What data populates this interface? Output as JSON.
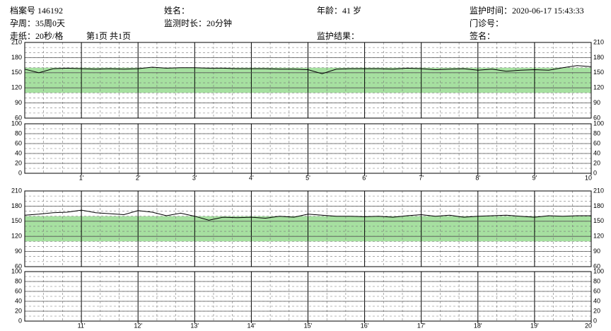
{
  "header": {
    "fields": [
      "档案号 146192",
      "姓名：",
      "年龄：41 岁",
      "监护时间：2020-06-17 15:43:33",
      "孕周：35周0天",
      "监测时长：20分钟",
      "门诊号：",
      "走纸：20秒/格",
      "第1页 共1页",
      "监护结果：",
      "签名："
    ]
  },
  "chart_data": [
    {
      "type": "line",
      "xlim": [
        0,
        10
      ],
      "ylim": [
        60,
        210
      ],
      "yticks": [
        60,
        90,
        120,
        150,
        180,
        210
      ],
      "grid": true,
      "normal_range": [
        110,
        160
      ],
      "normal_color": "#a6e0a0",
      "x": [
        0,
        0.25,
        0.5,
        0.75,
        1,
        1.25,
        1.5,
        1.75,
        2,
        2.25,
        2.5,
        2.75,
        3,
        3.25,
        3.5,
        3.75,
        4,
        4.25,
        4.5,
        4.75,
        5,
        5.25,
        5.5,
        5.75,
        6,
        6.25,
        6.5,
        6.75,
        7,
        7.25,
        7.5,
        7.75,
        8,
        8.25,
        8.5,
        8.75,
        9,
        9.25,
        9.5,
        9.75,
        10
      ],
      "series": [
        {
          "color": "#000000",
          "values": [
            157,
            150,
            158,
            159,
            158,
            157,
            158,
            157,
            158,
            161,
            159,
            160,
            160,
            159,
            159,
            158,
            158,
            158,
            157,
            157,
            156,
            148,
            157,
            158,
            158,
            158,
            157,
            159,
            158,
            156,
            157,
            158,
            155,
            157,
            153,
            155,
            156,
            155,
            160,
            164,
            162
          ]
        }
      ]
    },
    {
      "type": "line",
      "xlim": [
        0,
        10
      ],
      "ylim": [
        0,
        100
      ],
      "yticks": [
        0,
        20,
        40,
        60,
        80,
        100
      ],
      "grid": true,
      "xticks": [
        {
          "value": 1,
          "label": "1'"
        },
        {
          "value": 2,
          "label": "2'"
        },
        {
          "value": 3,
          "label": "3'"
        },
        {
          "value": 4,
          "label": "4'"
        },
        {
          "value": 5,
          "label": "5'"
        },
        {
          "value": 6,
          "label": "6'"
        },
        {
          "value": 7,
          "label": "7'"
        },
        {
          "value": 8,
          "label": "8'"
        },
        {
          "value": 9,
          "label": "9'"
        },
        10
      ]
    },
    {
      "type": "line",
      "xlim": [
        10,
        20
      ],
      "ylim": [
        60,
        210
      ],
      "yticks": [
        60,
        90,
        120,
        150,
        180,
        210
      ],
      "grid": true,
      "normal_range": [
        110,
        160
      ],
      "normal_color": "#a6e0a0",
      "x": [
        10,
        10.25,
        10.5,
        10.75,
        11,
        11.25,
        11.5,
        11.75,
        12,
        12.25,
        12.5,
        12.75,
        13,
        13.25,
        13.5,
        13.75,
        14,
        14.25,
        14.5,
        14.75,
        15,
        15.25,
        15.5,
        15.75,
        16,
        16.25,
        16.5,
        16.75,
        17,
        17.25,
        17.5,
        17.75,
        18,
        18.25,
        18.5,
        18.75,
        19,
        19.25,
        19.5,
        19.75,
        20
      ],
      "series": [
        {
          "color": "#000000",
          "values": [
            162,
            164,
            167,
            168,
            172,
            167,
            165,
            163,
            171,
            168,
            161,
            166,
            160,
            152,
            158,
            157,
            158,
            156,
            160,
            158,
            164,
            162,
            160,
            160,
            159,
            160,
            158,
            161,
            163,
            160,
            162,
            158,
            160,
            161,
            162,
            160,
            158,
            161,
            160,
            161,
            161
          ]
        }
      ]
    },
    {
      "type": "line",
      "xlim": [
        10,
        20
      ],
      "ylim": [
        0,
        100
      ],
      "yticks": [
        0,
        20,
        40,
        60,
        80,
        100
      ],
      "grid": true,
      "xticks": [
        {
          "value": 11,
          "label": "11'"
        },
        {
          "value": 12,
          "label": "12'"
        },
        {
          "value": 13,
          "label": "13'"
        },
        {
          "value": 14,
          "label": "14'"
        },
        {
          "value": 15,
          "label": "15'"
        },
        {
          "value": 16,
          "label": "16'"
        },
        {
          "value": 17,
          "label": "17'"
        },
        {
          "value": 18,
          "label": "18'"
        },
        {
          "value": 19,
          "label": "19'"
        },
        20
      ]
    }
  ]
}
